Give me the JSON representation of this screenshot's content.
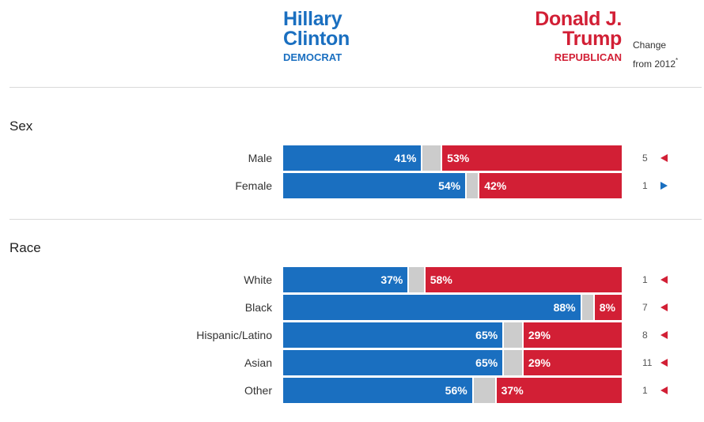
{
  "header": {
    "dem": {
      "name_line1": "Hillary",
      "name_line2": "Clinton",
      "party": "DEMOCRAT"
    },
    "rep": {
      "name_line1": "Donald J.",
      "name_line2": "Trump",
      "party": "REPUBLICAN"
    },
    "change_line1": "Change",
    "change_line2": "from 2012",
    "change_footnote": "*"
  },
  "colors": {
    "dem": "#1a6fc0",
    "rep": "#d21f35",
    "other": "#cccccc"
  },
  "chart_data": {
    "type": "bar",
    "orientation": "horizontal-stacked",
    "xlim": [
      0,
      100
    ],
    "units": "percent",
    "series_names": [
      "Clinton (Democrat)",
      "Other",
      "Trump (Republican)"
    ],
    "groups": [
      {
        "title": "Sex",
        "rows": [
          {
            "category": "Male",
            "dem": 41,
            "rep": 53,
            "change": 5,
            "change_dir": "rep",
            "dem_label": "41%",
            "rep_label": "53%",
            "change_label": "5"
          },
          {
            "category": "Female",
            "dem": 54,
            "rep": 42,
            "change": 1,
            "change_dir": "dem",
            "dem_label": "54%",
            "rep_label": "42%",
            "change_label": "1"
          }
        ]
      },
      {
        "title": "Race",
        "rows": [
          {
            "category": "White",
            "dem": 37,
            "rep": 58,
            "change": 1,
            "change_dir": "rep",
            "dem_label": "37%",
            "rep_label": "58%",
            "change_label": "1"
          },
          {
            "category": "Black",
            "dem": 88,
            "rep": 8,
            "change": 7,
            "change_dir": "rep",
            "dem_label": "88%",
            "rep_label": "8%",
            "change_label": "7"
          },
          {
            "category": "Hispanic/Latino",
            "dem": 65,
            "rep": 29,
            "change": 8,
            "change_dir": "rep",
            "dem_label": "65%",
            "rep_label": "29%",
            "change_label": "8"
          },
          {
            "category": "Asian",
            "dem": 65,
            "rep": 29,
            "change": 11,
            "change_dir": "rep",
            "dem_label": "65%",
            "rep_label": "29%",
            "change_label": "11"
          },
          {
            "category": "Other",
            "dem": 56,
            "rep": 37,
            "change": 1,
            "change_dir": "rep",
            "dem_label": "56%",
            "rep_label": "37%",
            "change_label": "1"
          }
        ]
      }
    ]
  }
}
